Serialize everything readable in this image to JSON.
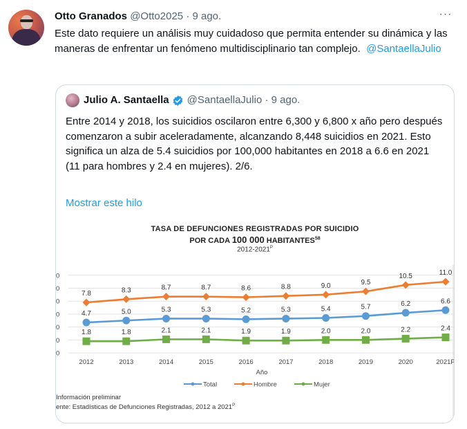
{
  "tweet": {
    "author_name": "Otto Granados",
    "author_handle": "@Otto2025",
    "separator": "·",
    "date": "9 ago.",
    "more_icon": "···",
    "text": "Este dato requiere un análisis muy cuidadoso que permita entender su dinámica y las maneras de enfrentar un fenómeno multidisciplinario tan complejo.",
    "mention": "@SantaellaJulio"
  },
  "quoted_tweet": {
    "author_name": "Julio A. Santaella",
    "verified": true,
    "author_handle": "@SantaellaJulio",
    "separator": "·",
    "date": "9 ago.",
    "text": "Entre 2014 y 2018, los suicidios oscilaron entre 6,300 y 6,800 x año pero después comenzaron a subir aceleradamente, alcanzando 8,448 suicidios en 2021. Esto significa un alza de 5.4 suicidios por 100,000 habitantes en 2018 a 6.6 en 2021 (11 para hombres y 2.4 en mujeres). 2/6.",
    "show_thread": "Mostrar este hilo",
    "image": {
      "title_line1": "Tasa de defunciones registradas por suicidio",
      "title_line2_pre": "por cada ",
      "title_line2_num": "100 000",
      "title_line2_post": " habitantes",
      "title_line2_sup": "58",
      "subtitle": "2012-2021",
      "subtitle_sup": "P",
      "footnote1": "Información preliminar",
      "footnote2": "ente: Estadísticas de Defunciones Registradas, 2012 a 2021",
      "footnote2_sup": "P"
    }
  },
  "chart_data": {
    "type": "line",
    "title": "Tasa de defunciones registradas por suicidio por cada 100 000 habitantes",
    "subtitle": "2012-2021P",
    "xlabel": "Año",
    "ylabel": "",
    "categories": [
      "2012",
      "2013",
      "2014",
      "2015",
      "2016",
      "2017",
      "2018",
      "2019",
      "2020",
      "2021P"
    ],
    "series": [
      {
        "name": "Total",
        "color": "#5b9bd5",
        "marker": "circle",
        "values": [
          4.7,
          5.0,
          5.3,
          5.3,
          5.2,
          5.3,
          5.4,
          5.7,
          6.2,
          6.6
        ]
      },
      {
        "name": "Hombre",
        "color": "#ed7d31",
        "marker": "diamond",
        "values": [
          7.8,
          8.3,
          8.7,
          8.7,
          8.6,
          8.8,
          9.0,
          9.5,
          10.5,
          11.0
        ]
      },
      {
        "name": "Mujer",
        "color": "#70ad47",
        "marker": "square",
        "values": [
          1.8,
          1.8,
          2.1,
          2.1,
          1.9,
          1.9,
          2.0,
          2.0,
          2.2,
          2.4
        ]
      }
    ],
    "ylim": [
      0,
      12
    ],
    "ytick_step": 2,
    "grid": true,
    "legend_position": "bottom",
    "data_labels": true
  }
}
